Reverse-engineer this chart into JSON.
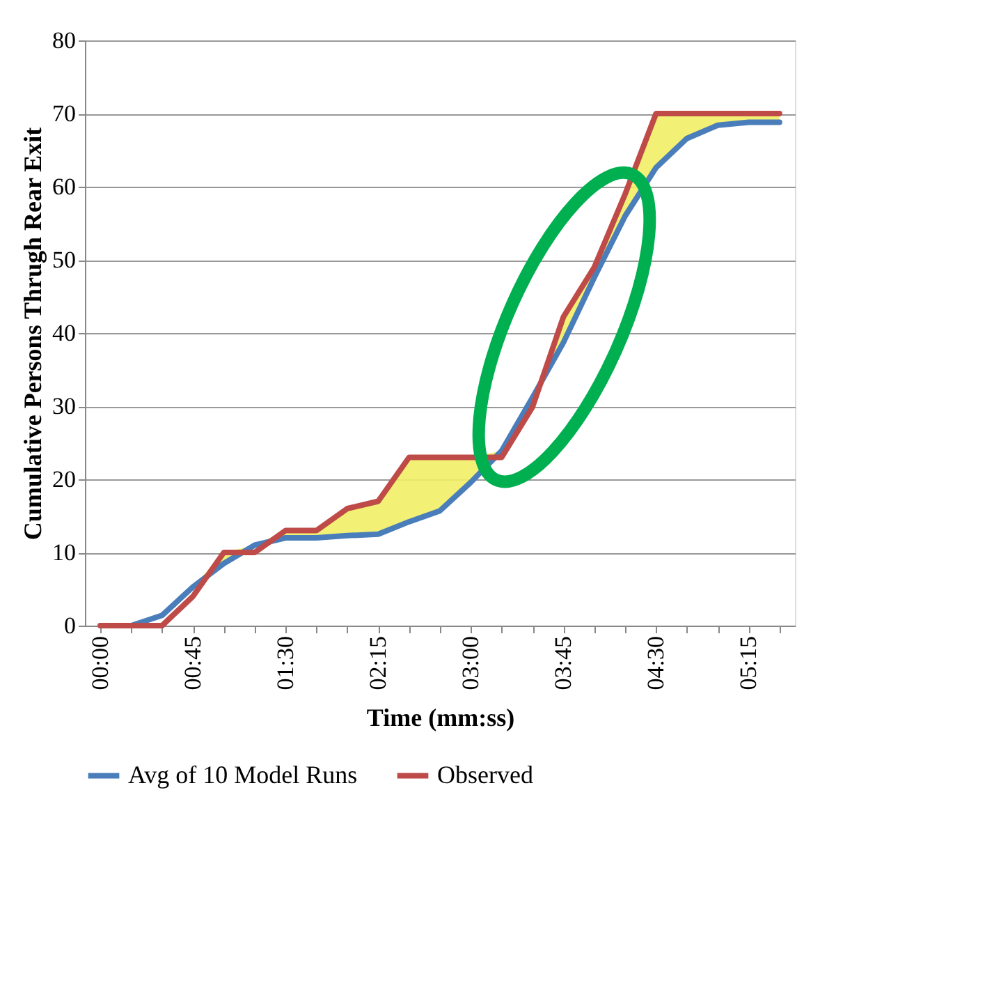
{
  "chart_data": {
    "type": "line",
    "xlabel": "Time (mm:ss)",
    "ylabel": "Cumulative Persons Thrugh Rear Exit",
    "categories": [
      "00:00",
      null,
      null,
      "00:45",
      null,
      null,
      "01:30",
      null,
      null,
      "02:15",
      null,
      null,
      "03:00",
      null,
      null,
      "03:45",
      null,
      null,
      "04:30",
      null,
      null,
      "05:15",
      null
    ],
    "series": [
      {
        "name": "Avg of 10 Model Runs",
        "color": "#4a7ebb",
        "values": [
          0,
          0,
          1.4,
          5.3,
          8.5,
          11,
          12,
          12,
          12.3,
          12.5,
          14.2,
          15.7,
          19.6,
          23.9,
          31.2,
          38.7,
          47.6,
          56,
          62.6,
          66.6,
          68.4,
          68.8,
          68.8
        ]
      },
      {
        "name": "Observed",
        "color": "#be4b48",
        "values": [
          0,
          0,
          0,
          4,
          10,
          10,
          13,
          13,
          16,
          17,
          23,
          23,
          23,
          23,
          29.9,
          42.2,
          49,
          59,
          70,
          70,
          70,
          70,
          70
        ],
        "lower": [
          0,
          0,
          1.4,
          5.3,
          8.5,
          11,
          12,
          12,
          12.3,
          12.5,
          14.2,
          15.7,
          19.6,
          23.9,
          31.2,
          38.7,
          47.6,
          56,
          62.6,
          66.6,
          68.4,
          68.8,
          68.8
        ],
        "upper": [
          0,
          0,
          1.4,
          5.3,
          10,
          11,
          13,
          13,
          16,
          17,
          23,
          23,
          23,
          23.9,
          31.2,
          42.2,
          49,
          59,
          70,
          70,
          70,
          70,
          70
        ]
      }
    ],
    "ylim": [
      0,
      80
    ],
    "yticks": [
      0,
      10,
      20,
      30,
      40,
      50,
      60,
      70,
      80
    ],
    "grid": "y",
    "legend": "bottom",
    "marker": "none",
    "line_style": "solid"
  }
}
